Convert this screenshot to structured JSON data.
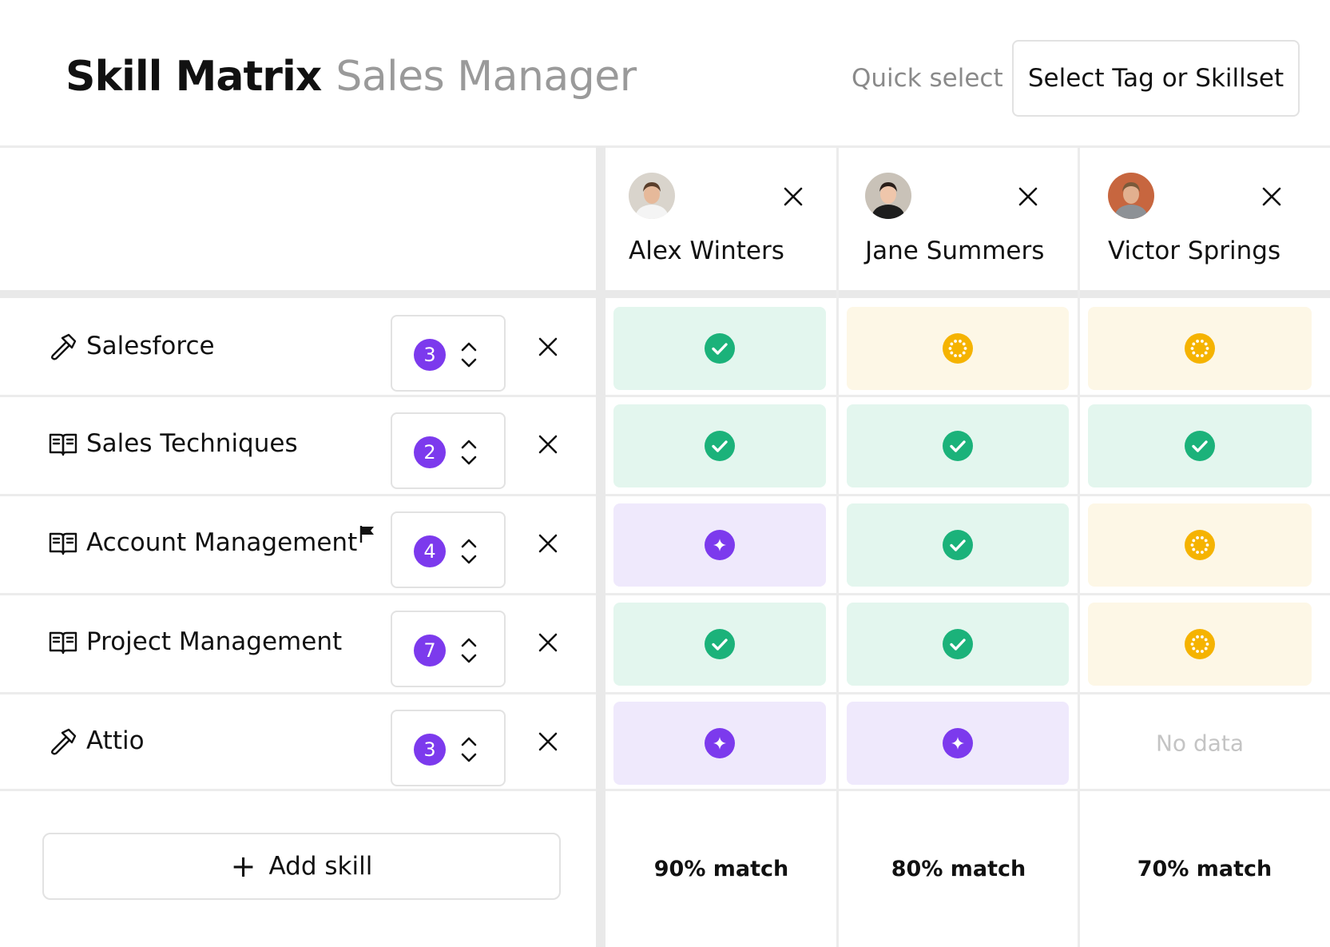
{
  "header": {
    "title": "Skill Matrix",
    "subtitle": "Sales Manager",
    "quick_select_label": "Quick select",
    "select_button_label": "Select Tag or Skillset"
  },
  "people": [
    {
      "name": "Alex Winters",
      "avatar": "avatar-photo"
    },
    {
      "name": "Jane Summers",
      "avatar": "avatar-photo"
    },
    {
      "name": "Victor Springs",
      "avatar": "avatar-photo"
    }
  ],
  "skills": [
    {
      "name": "Salesforce",
      "icon": "hammer-icon",
      "level": "3",
      "flagged": false,
      "statuses": [
        "verified",
        "pending",
        "pending"
      ]
    },
    {
      "name": "Sales Techniques",
      "icon": "book-icon",
      "level": "2",
      "flagged": false,
      "statuses": [
        "verified",
        "verified",
        "verified"
      ]
    },
    {
      "name": "Account Management",
      "icon": "book-icon",
      "level": "4",
      "flagged": true,
      "statuses": [
        "sparkle",
        "verified",
        "pending"
      ]
    },
    {
      "name": "Project Management",
      "icon": "book-icon",
      "level": "7",
      "flagged": false,
      "statuses": [
        "verified",
        "verified",
        "pending"
      ]
    },
    {
      "name": "Attio",
      "icon": "hammer-icon",
      "level": "3",
      "flagged": false,
      "statuses": [
        "sparkle",
        "sparkle",
        "none"
      ]
    }
  ],
  "no_data_label": "No data",
  "add_skill_label": "Add skill",
  "matches": [
    "90% match",
    "80% match",
    "70% match"
  ],
  "colors": {
    "verified": "#1bb27a",
    "pending": "#f5b301",
    "sparkle": "#7c3aed",
    "verified_bg": "#e3f6ee",
    "pending_bg": "#fdf7e6",
    "sparkle_bg": "#efe9fc"
  }
}
